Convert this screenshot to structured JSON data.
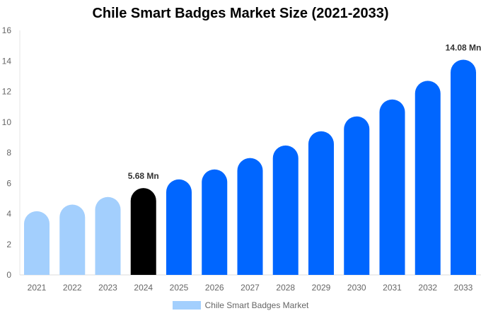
{
  "chart_data": {
    "type": "bar",
    "title": "Chile Smart Badges Market Size (2021-2033)",
    "xlabel": "",
    "ylabel": "",
    "categories": [
      "2021",
      "2022",
      "2023",
      "2024",
      "2025",
      "2026",
      "2027",
      "2028",
      "2029",
      "2030",
      "2031",
      "2032",
      "2033"
    ],
    "series": [
      {
        "name": "Chile Smart Badges Market",
        "values": [
          4.17,
          4.6,
          5.1,
          5.68,
          6.25,
          6.9,
          7.65,
          8.47,
          9.4,
          10.37,
          11.48,
          12.7,
          14.08
        ]
      }
    ],
    "data_labels": [
      {
        "category": "2024",
        "text": "5.68 Mn"
      },
      {
        "category": "2033",
        "text": "14.08 Mn"
      }
    ],
    "ylim": [
      0,
      16
    ],
    "yticks": [
      0,
      2,
      4,
      6,
      8,
      10,
      12,
      14,
      16
    ],
    "grid": false,
    "legend_position": "bottom",
    "colors": {
      "historical": "#a3cffd",
      "base_year": "#000000",
      "forecast": "#0066ff"
    },
    "bar_color_groups": [
      "historical",
      "historical",
      "historical",
      "base_year",
      "forecast",
      "forecast",
      "forecast",
      "forecast",
      "forecast",
      "forecast",
      "forecast",
      "forecast",
      "forecast"
    ]
  }
}
